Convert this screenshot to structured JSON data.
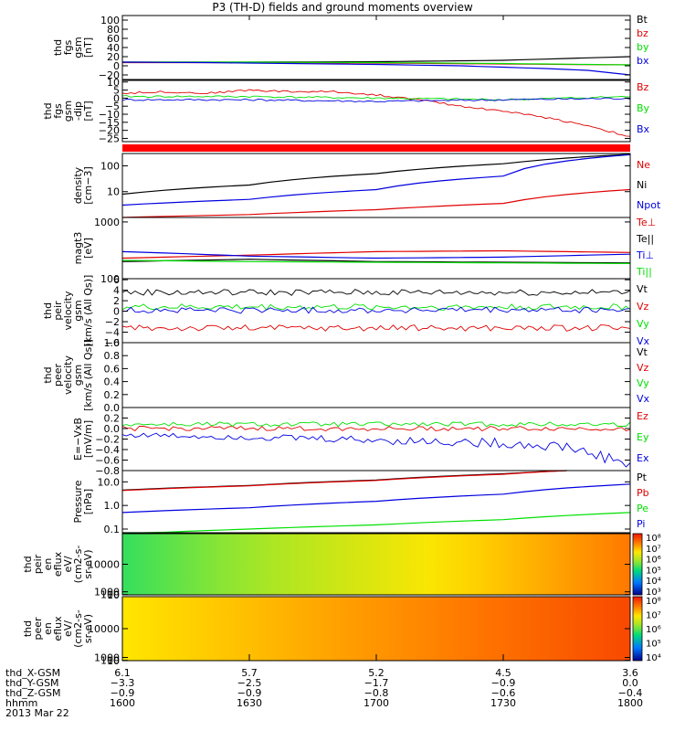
{
  "title": "P3 (TH-D) fields and ground moments overview",
  "date": "2013 Mar 22",
  "colors": {
    "black": "#000000",
    "red": "#e00000",
    "green": "#00e000",
    "blue": "#0000e0",
    "fill": "#ff0000"
  },
  "chart_data": [
    {
      "type": "line",
      "id": "fgs_gsm",
      "ylabel": [
        "thd",
        "fgs",
        "gsm",
        "[nT]"
      ],
      "ylim": [
        -30,
        110
      ],
      "yticks": [
        -20,
        0,
        20,
        40,
        60,
        80,
        100
      ],
      "ytick_labels": [
        "−20",
        "0",
        "20",
        "40",
        "60",
        "80",
        "100"
      ],
      "legend": [
        "Bt",
        "bz",
        "by",
        "bx"
      ],
      "series": [
        {
          "name": "Bt",
          "color": "black",
          "x": [
            1600,
            1630,
            1700,
            1730,
            1800
          ],
          "y": [
            8,
            8,
            9,
            12,
            20
          ]
        },
        {
          "name": "bz",
          "color": "red",
          "x": [
            1600,
            1630,
            1700,
            1730,
            1800
          ],
          "y": [
            7,
            7,
            6,
            4,
            2
          ]
        },
        {
          "name": "by",
          "color": "green",
          "x": [
            1600,
            1630,
            1700,
            1730,
            1800
          ],
          "y": [
            8,
            8,
            7,
            5,
            2
          ]
        },
        {
          "name": "bx",
          "color": "blue",
          "x": [
            1600,
            1620,
            1700,
            1720,
            1740,
            1750,
            1800
          ],
          "y": [
            8,
            7,
            3,
            0,
            -6,
            -10,
            -20
          ]
        }
      ]
    },
    {
      "type": "line",
      "id": "fgs_gsm_dip",
      "ylabel": [
        "thd",
        "fgs",
        "gsm",
        "-dip",
        "[nT]"
      ],
      "ylim": [
        -27,
        11
      ],
      "yticks": [
        -25,
        -20,
        -15,
        -10,
        -5,
        0,
        5,
        10
      ],
      "ytick_labels": [
        "−25",
        "−20",
        "−15",
        "−10",
        "−5",
        "0",
        "5",
        "10"
      ],
      "legend": [
        "Bz",
        "By",
        "Bx"
      ],
      "series": [
        {
          "name": "Bz",
          "color": "red",
          "x": [
            1600,
            1610,
            1620,
            1630,
            1640,
            1650,
            1700,
            1710,
            1720,
            1730,
            1740,
            1750,
            1800
          ],
          "y": [
            3,
            4,
            3,
            5,
            4,
            4,
            2,
            -1,
            -5,
            -8,
            -12,
            -17,
            -24
          ]
        },
        {
          "name": "By",
          "color": "green",
          "x": [
            1600,
            1630,
            1700,
            1730,
            1800
          ],
          "y": [
            1,
            1,
            0,
            -1,
            1
          ]
        },
        {
          "name": "Bx",
          "color": "blue",
          "x": [
            1600,
            1630,
            1700,
            1730,
            1800
          ],
          "y": [
            -1,
            -1,
            -2,
            -1,
            0
          ]
        }
      ]
    },
    {
      "type": "bar",
      "id": "mode_bar",
      "series": [
        {
          "name": "mode",
          "color": "fill",
          "x": [
            1600,
            1800
          ]
        }
      ]
    },
    {
      "type": "line",
      "id": "density",
      "log": true,
      "ylabel": [
        "density",
        "[cm−3]"
      ],
      "ylim": [
        1,
        300
      ],
      "yticks": [
        10,
        100
      ],
      "ytick_labels": [
        "10",
        "100"
      ],
      "legend": [
        "Ne",
        "Ni",
        "Npot"
      ],
      "series": [
        {
          "name": "Ne",
          "color": "red",
          "x": [
            1600,
            1630,
            1700,
            1730,
            1800
          ],
          "y": [
            1,
            1.3,
            2,
            3.5,
            12
          ]
        },
        {
          "name": "Ni",
          "color": "black",
          "x": [
            1600,
            1630,
            1700,
            1730,
            1800
          ],
          "y": [
            8,
            18,
            50,
            120,
            280
          ]
        },
        {
          "name": "Npot",
          "color": "blue",
          "x": [
            1600,
            1630,
            1700,
            1730,
            1800
          ],
          "y": [
            3,
            5,
            12,
            40,
            270
          ]
        }
      ]
    },
    {
      "type": "line",
      "id": "temperature",
      "log": true,
      "ylabel": [
        "magt3",
        "[eV]"
      ],
      "ylim": [
        100,
        1200
      ],
      "yticks": [
        100,
        1000
      ],
      "ytick_labels": [
        "100",
        "1000"
      ],
      "legend": [
        "Te⊥",
        "Te||",
        "Ti⊥",
        "Ti||"
      ],
      "series": [
        {
          "name": "Te⊥",
          "color": "red",
          "x": [
            1600,
            1630,
            1700,
            1730,
            1800
          ],
          "y": [
            230,
            260,
            300,
            310,
            290
          ]
        },
        {
          "name": "Te||",
          "color": "black",
          "x": [
            1600,
            1630,
            1700,
            1730,
            1800
          ],
          "y": [
            200,
            220,
            200,
            195,
            190
          ]
        },
        {
          "name": "Ti⊥",
          "color": "blue",
          "x": [
            1600,
            1630,
            1700,
            1730,
            1800
          ],
          "y": [
            300,
            250,
            230,
            240,
            270
          ]
        },
        {
          "name": "Ti||",
          "color": "green",
          "x": [
            1600,
            1630,
            1700,
            1730,
            1800
          ],
          "y": [
            210,
            200,
            195,
            190,
            185
          ]
        }
      ]
    },
    {
      "type": "line",
      "id": "peir_velocity",
      "ylabel": [
        "thd",
        "peir",
        "velocity",
        "gsm",
        "[km/s (All Qs)]"
      ],
      "ylim": [
        -6,
        6.2
      ],
      "yticks": [
        -6,
        -4,
        -2,
        0,
        2,
        4,
        6
      ],
      "ytick_labels": [
        "−6",
        "−4",
        "−2",
        "0",
        "2",
        "4",
        "6"
      ],
      "legend": [
        "Vt",
        "Vz",
        "Vy",
        "Vx"
      ],
      "series": [
        {
          "name": "Vt",
          "color": "black",
          "x": [
            1600,
            1800
          ],
          "y": [
            3.6,
            3.6
          ]
        },
        {
          "name": "Vz",
          "color": "red",
          "x": [
            1600,
            1800
          ],
          "y": [
            -3.2,
            -3.2
          ]
        },
        {
          "name": "Vy",
          "color": "green",
          "x": [
            1600,
            1800
          ],
          "y": [
            0.8,
            0.8
          ]
        },
        {
          "name": "Vx",
          "color": "blue",
          "x": [
            1600,
            1800
          ],
          "y": [
            0.2,
            0.2
          ]
        }
      ]
    },
    {
      "type": "line",
      "id": "peer_velocity",
      "ylabel": [
        "thd",
        "peer",
        "velocity",
        "gsm",
        "[km/s (All Qs)]"
      ],
      "ylim": [
        0,
        1
      ],
      "yticks": [
        0,
        0.2,
        0.4,
        0.6,
        0.8,
        1.0
      ],
      "ytick_labels": [
        "0.0",
        "0.2",
        "0.4",
        "0.6",
        "0.8",
        "1.0"
      ],
      "legend": [
        "Vt",
        "Vz",
        "Vy",
        "Vx"
      ],
      "series": []
    },
    {
      "type": "line",
      "id": "efield",
      "ylabel": [
        "E=−VxB",
        "[mV/m]"
      ],
      "ylim": [
        -0.8,
        0.4
      ],
      "yticks": [
        -0.8,
        -0.6,
        -0.4,
        -0.2,
        0,
        0.2
      ],
      "ytick_labels": [
        "−0.8",
        "−0.6",
        "−0.4",
        "−0.2",
        "0.0",
        "0.2"
      ],
      "legend": [
        "Ez",
        "Ey",
        "Ex"
      ],
      "series": [
        {
          "name": "Ez",
          "color": "red",
          "x": [
            1600,
            1800
          ],
          "y": [
            0,
            0
          ]
        },
        {
          "name": "Ey",
          "color": "green",
          "x": [
            1600,
            1800
          ],
          "y": [
            0.08,
            0.08
          ]
        },
        {
          "name": "Ex",
          "color": "blue",
          "x": [
            1600,
            1630,
            1700,
            1730,
            1745,
            1800
          ],
          "y": [
            -0.12,
            -0.16,
            -0.22,
            -0.28,
            -0.35,
            -0.68
          ]
        }
      ]
    },
    {
      "type": "line",
      "id": "pressure",
      "log": true,
      "ylabel": [
        "Pressure",
        "[nPa]"
      ],
      "ylim": [
        0.07,
        30
      ],
      "yticks": [
        0.1,
        1,
        10
      ],
      "ytick_labels": [
        "0.1",
        "1.0",
        "10.0"
      ],
      "legend": [
        "Pt",
        "Pb",
        "Pe",
        "Pi"
      ],
      "series": [
        {
          "name": "Pt",
          "color": "black",
          "x": [
            1600,
            1630,
            1700,
            1730,
            1745
          ],
          "y": [
            4.5,
            7,
            12,
            22,
            30
          ]
        },
        {
          "name": "Pb",
          "color": "red",
          "x": [
            1600,
            1630,
            1700,
            1730,
            1745
          ],
          "y": [
            4.3,
            6.8,
            11.5,
            21,
            30
          ]
        },
        {
          "name": "Pe",
          "color": "green",
          "x": [
            1600,
            1630,
            1700,
            1730,
            1800
          ],
          "y": [
            0.06,
            0.1,
            0.15,
            0.25,
            0.5
          ]
        },
        {
          "name": "Pi",
          "color": "blue",
          "x": [
            1600,
            1630,
            1700,
            1730,
            1800
          ],
          "y": [
            0.5,
            0.8,
            1.5,
            3,
            8
          ]
        }
      ]
    },
    {
      "type": "heatmap",
      "id": "peir_spec",
      "ylabel": [
        "thd",
        "peir",
        "en",
        "eflux",
        "eV/",
        "(cm2-s-",
        "sr-eV)"
      ],
      "ylim": [
        7,
        20000
      ],
      "yticks": [
        10,
        100,
        1000,
        10000
      ],
      "ytick_labels": [
        "10",
        "100",
        "1000",
        "10000"
      ],
      "colorbar_labels": [
        "10³",
        "10⁴",
        "10⁵",
        "10⁶",
        "10⁷",
        "10⁸"
      ],
      "level_start_end": [
        0.45,
        0.85
      ]
    },
    {
      "type": "heatmap",
      "id": "peer_spec",
      "ylabel": [
        "thd",
        "peer",
        "en",
        "eflux",
        "eV/",
        "(cm2-s-",
        "sr-eV)"
      ],
      "ylim": [
        7,
        20000
      ],
      "yticks": [
        10,
        100,
        1000,
        10000
      ],
      "ytick_labels": [
        "10",
        "100",
        "1000",
        "10000"
      ],
      "colorbar_labels": [
        "10⁴",
        "10⁵",
        "10⁶",
        "10⁷",
        "10⁸"
      ],
      "level_start_end": [
        0.7,
        0.92
      ]
    }
  ],
  "xaxis": {
    "rows": [
      {
        "label": "thd_X-GSM",
        "values": [
          "6.1",
          "5.7",
          "5.2",
          "4.5",
          "3.6"
        ]
      },
      {
        "label": "thd_Y-GSM",
        "values": [
          "−3.3",
          "−2.5",
          "−1.7",
          "−0.9",
          "0.0"
        ]
      },
      {
        "label": "thd_Z-GSM",
        "values": [
          "−0.9",
          "−0.9",
          "−0.8",
          "−0.6",
          "−0.4"
        ]
      },
      {
        "label": "hhmm",
        "values": [
          "1600",
          "1630",
          "1700",
          "1730",
          "1800"
        ]
      }
    ]
  }
}
